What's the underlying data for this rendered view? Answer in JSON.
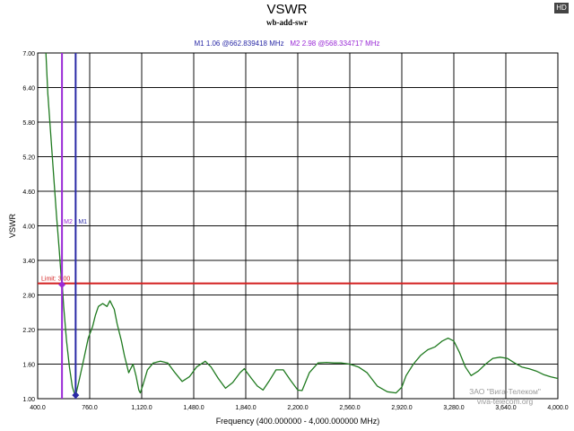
{
  "chart_data": {
    "type": "line",
    "title": "VSWR",
    "subtitle": "wb-add-swr",
    "xlabel": "Frequency (400.000000 - 4,000.000000 MHz)",
    "ylabel": "VSWR",
    "xlim": [
      400,
      4000
    ],
    "ylim": [
      1.0,
      7.0
    ],
    "xticks": [
      400,
      760,
      1120,
      1480,
      1840,
      2200,
      2560,
      2920,
      3280,
      3640,
      4000
    ],
    "xtick_labels": [
      "400.0",
      "760.0",
      "1,120.0",
      "1,480.0",
      "1,840.0",
      "2,200.0",
      "2,560.0",
      "2,920.0",
      "3,280.0",
      "3,640.0",
      "4,000.0"
    ],
    "yticks": [
      1.0,
      1.6,
      2.2,
      2.8,
      3.4,
      4.0,
      4.6,
      5.2,
      5.8,
      6.4,
      7.0
    ],
    "ytick_labels": [
      "1.00",
      "1.60",
      "2.20",
      "2.80",
      "3.40",
      "4.00",
      "4.60",
      "5.20",
      "5.80",
      "6.40",
      "7.00"
    ],
    "grid": true,
    "series": [
      {
        "color": "#1f7a1f",
        "x": [
          457,
          470,
          490,
          510,
          530,
          550,
          563,
          570,
          580,
          600,
          620,
          640,
          660,
          663,
          690,
          720,
          750,
          780,
          800,
          820,
          850,
          880,
          900,
          930,
          950,
          980,
          1000,
          1030,
          1060,
          1080,
          1100,
          1110,
          1130,
          1160,
          1200,
          1250,
          1300,
          1350,
          1400,
          1450,
          1500,
          1560,
          1600,
          1650,
          1700,
          1750,
          1800,
          1830,
          1850,
          1880,
          1920,
          1960,
          2000,
          2050,
          2100,
          2150,
          2200,
          2230,
          2280,
          2340,
          2400,
          2450,
          2500,
          2560,
          2620,
          2680,
          2750,
          2820,
          2880,
          2920,
          2950,
          3000,
          3050,
          3100,
          3150,
          3200,
          3240,
          3280,
          3320,
          3360,
          3400,
          3450,
          3500,
          3550,
          3600,
          3650,
          3700,
          3750,
          3800,
          3850,
          3900,
          3950,
          4000
        ],
        "y": [
          7.0,
          6.3,
          5.6,
          4.9,
          4.2,
          3.55,
          3.1,
          2.98,
          2.6,
          2.0,
          1.55,
          1.2,
          1.05,
          1.06,
          1.35,
          1.7,
          2.05,
          2.25,
          2.45,
          2.6,
          2.65,
          2.6,
          2.7,
          2.55,
          2.3,
          2.0,
          1.75,
          1.45,
          1.6,
          1.4,
          1.15,
          1.1,
          1.25,
          1.5,
          1.62,
          1.65,
          1.62,
          1.45,
          1.3,
          1.38,
          1.55,
          1.65,
          1.55,
          1.35,
          1.18,
          1.28,
          1.45,
          1.52,
          1.45,
          1.35,
          1.22,
          1.15,
          1.3,
          1.5,
          1.5,
          1.32,
          1.15,
          1.14,
          1.45,
          1.62,
          1.63,
          1.62,
          1.62,
          1.6,
          1.55,
          1.45,
          1.22,
          1.12,
          1.1,
          1.2,
          1.4,
          1.6,
          1.75,
          1.85,
          1.9,
          2.0,
          2.05,
          2.0,
          1.8,
          1.55,
          1.4,
          1.48,
          1.6,
          1.7,
          1.72,
          1.7,
          1.62,
          1.55,
          1.52,
          1.48,
          1.42,
          1.38,
          1.35
        ]
      }
    ],
    "limit_line": {
      "value": 3.0,
      "label": "Limit: 3.00",
      "color": "#d42020"
    },
    "markers": [
      {
        "name": "M1",
        "x": 662.839418,
        "y": 1.06,
        "color": "#2a2aa6",
        "readout": "1.06 @662.839418 MHz"
      },
      {
        "name": "M2",
        "x": 568.334717,
        "y": 2.98,
        "color": "#9a2ad6",
        "readout": "2.98 @568.334717 MHz"
      }
    ]
  },
  "ui": {
    "badge": "HD",
    "watermark_line1": "ЗАО \"Вига-Телеком\"",
    "watermark_line2": "viva-telecom.org"
  }
}
